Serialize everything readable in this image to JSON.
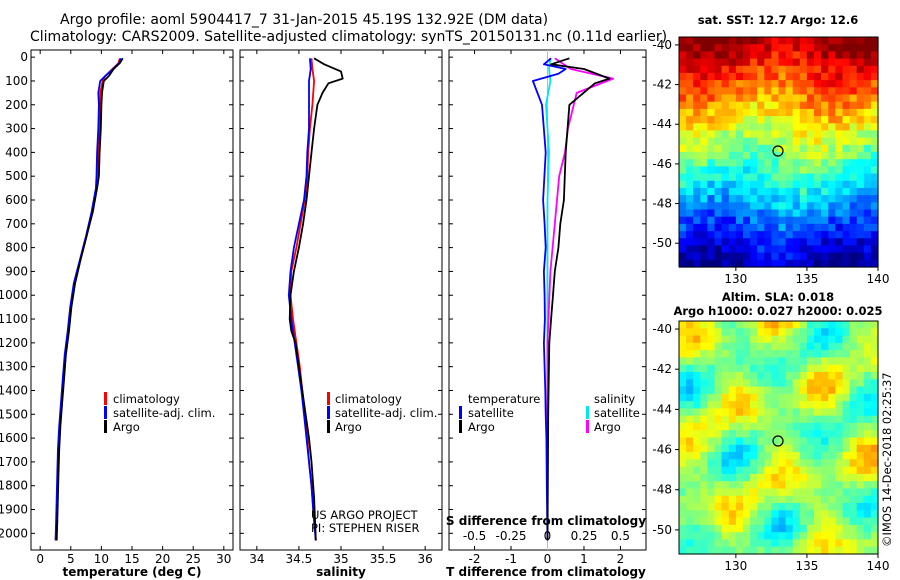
{
  "header": {
    "title_line1": "Argo profile: aoml 5904417_7 31-Jan-2015 45.19S 132.92E (DM data)",
    "title_line2": "Climatology: CARS2009. Satellite-adjusted climatology: synTS_20150131.nc (0.11d earlier)"
  },
  "depth_ticks": [
    "0",
    "100",
    "200",
    "300",
    "400",
    "500",
    "600",
    "700",
    "800",
    "900",
    "1000",
    "1100",
    "1200",
    "1300",
    "1400",
    "1500",
    "1600",
    "1700",
    "1800",
    "1900",
    "2000"
  ],
  "colors": {
    "climatology": "#ff0000",
    "satellite": "#0000ff",
    "argo": "#000000",
    "satellite_s": "#00e5ee",
    "argo_s": "#ff00ff"
  },
  "legend": {
    "climatology": "climatology",
    "satellite": "satellite-adj. clim.",
    "argo": "Argo"
  },
  "legend_diff": {
    "temperature": "temperature",
    "salinity": "salinity",
    "satellite": "satellite",
    "argo": "Argo"
  },
  "credit": {
    "line1": "US ARGO PROJECT",
    "line2": "PI: STEPHEN RISER"
  },
  "sst_title": "sat. SST: 12.7 Argo: 12.6",
  "sla_title1": "Altim. SLA: 0.018",
  "sla_title2": "Argo h1000: 0.027 h2000: 0.025",
  "stamp": "©IMOS 14-Dec-2018 02:25:37",
  "chart_data": [
    {
      "id": "temperature",
      "type": "line",
      "xlabel": "temperature (deg C)",
      "ylim": [
        2070,
        -30
      ],
      "xlim": [
        -1.5,
        31.5
      ],
      "xticks": [
        "0",
        "5",
        "10",
        "15",
        "20",
        "25",
        "30"
      ],
      "series": [
        {
          "name": "climatology",
          "x": [
            13.0,
            12.8,
            11.8,
            10.6,
            10.2,
            9.8,
            9.8,
            9.7,
            9.5,
            9.3,
            9.2,
            8.5,
            7.6,
            6.6,
            5.6,
            5.0,
            4.6,
            4.1,
            3.8,
            3.5,
            3.2,
            3.0,
            2.9,
            2.8,
            2.7,
            2.6
          ],
          "y": [
            5,
            25,
            50,
            80,
            100,
            150,
            200,
            300,
            400,
            500,
            550,
            650,
            750,
            850,
            950,
            1050,
            1150,
            1250,
            1350,
            1450,
            1550,
            1650,
            1750,
            1850,
            1950,
            2030
          ]
        },
        {
          "name": "satellite-adj. clim.",
          "x": [
            13.2,
            12.9,
            11.9,
            10.6,
            9.8,
            9.5,
            9.6,
            9.5,
            9.3,
            9.2,
            9.1,
            8.4,
            7.5,
            6.5,
            5.5,
            4.9,
            4.5,
            4.0,
            3.7,
            3.4,
            3.1,
            2.9,
            2.8,
            2.7,
            2.6,
            2.5
          ],
          "y": [
            5,
            25,
            50,
            80,
            100,
            150,
            200,
            300,
            400,
            500,
            550,
            650,
            750,
            850,
            950,
            1050,
            1150,
            1250,
            1350,
            1450,
            1550,
            1650,
            1750,
            1850,
            1950,
            2030
          ]
        },
        {
          "name": "Argo",
          "x": [
            13.5,
            13.0,
            12.0,
            11.2,
            10.4,
            10.1,
            10.0,
            9.9,
            9.7,
            9.6,
            9.3,
            8.6,
            7.6,
            6.6,
            5.7,
            5.1,
            4.7,
            4.2,
            3.9,
            3.6,
            3.3,
            3.1,
            3.0,
            2.9,
            2.8,
            2.7
          ],
          "y": [
            5,
            25,
            50,
            80,
            100,
            150,
            200,
            300,
            400,
            500,
            550,
            650,
            750,
            850,
            950,
            1050,
            1150,
            1250,
            1350,
            1450,
            1550,
            1650,
            1750,
            1850,
            1950,
            2030
          ]
        }
      ]
    },
    {
      "id": "salinity",
      "type": "line",
      "xlabel": "salinity",
      "ylim": [
        2070,
        -30
      ],
      "xlim": [
        33.8,
        36.2
      ],
      "xticks": [
        "34",
        "34.5",
        "35",
        "35.5",
        "36"
      ],
      "series": [
        {
          "name": "climatology",
          "x": [
            34.65,
            34.66,
            34.68,
            34.66,
            34.63,
            34.61,
            34.6,
            34.57,
            34.52,
            34.47,
            34.41,
            34.4,
            34.43,
            34.47,
            34.51,
            34.54,
            34.57,
            34.6,
            34.62,
            34.65,
            34.67,
            34.69,
            34.7
          ],
          "y": [
            5,
            50,
            100,
            200,
            300,
            400,
            500,
            600,
            700,
            800,
            900,
            1000,
            1100,
            1200,
            1300,
            1400,
            1500,
            1600,
            1700,
            1800,
            1900,
            1950,
            2030
          ]
        },
        {
          "name": "satellite-adj. clim.",
          "x": [
            34.63,
            34.64,
            34.62,
            34.62,
            34.62,
            34.6,
            34.59,
            34.56,
            34.5,
            34.44,
            34.4,
            34.38,
            34.41,
            34.45,
            34.49,
            34.53,
            34.56,
            34.59,
            34.62,
            34.65,
            34.67,
            34.68,
            34.7
          ],
          "y": [
            5,
            50,
            100,
            200,
            300,
            400,
            500,
            600,
            700,
            800,
            900,
            1000,
            1100,
            1200,
            1300,
            1400,
            1500,
            1600,
            1700,
            1800,
            1900,
            1950,
            2030
          ]
        },
        {
          "name": "Argo",
          "x": [
            34.68,
            34.8,
            35.0,
            35.02,
            34.85,
            34.78,
            34.72,
            34.68,
            34.65,
            34.62,
            34.59,
            34.55,
            34.5,
            34.44,
            34.4,
            34.39,
            34.41,
            34.46,
            34.5,
            34.54,
            34.58,
            34.62,
            34.65,
            34.68,
            34.7
          ],
          "y": [
            5,
            30,
            60,
            90,
            110,
            150,
            200,
            300,
            400,
            500,
            600,
            700,
            800,
            900,
            1000,
            1100,
            1150,
            1200,
            1300,
            1400,
            1500,
            1600,
            1700,
            1850,
            2030
          ]
        }
      ]
    },
    {
      "id": "difference",
      "type": "line",
      "xlabel": "T difference from climatology",
      "xlabel_top": "S difference from climatology",
      "ylim": [
        2070,
        -30
      ],
      "xlim": [
        -2.7,
        2.7
      ],
      "xticks": [
        "-2",
        "-1",
        "0",
        "1",
        "2"
      ],
      "xticks_s": [
        "-0.5",
        "-0.25",
        "0",
        "0.25",
        "0.5"
      ],
      "series": [
        {
          "name": "satellite",
          "variable": "temperature",
          "x": [
            0.1,
            -0.1,
            0.5,
            0.3,
            -0.4,
            -0.15,
            -0.05,
            -0.12,
            -0.08,
            -0.05,
            -0.1,
            -0.08,
            -0.07,
            -0.1,
            -0.08,
            -0.06,
            -0.05,
            -0.03,
            -0.02,
            0
          ],
          "y": [
            5,
            30,
            50,
            70,
            100,
            200,
            400,
            600,
            700,
            800,
            900,
            1000,
            1100,
            1200,
            1300,
            1400,
            1500,
            1600,
            1800,
            2030
          ]
        },
        {
          "name": "Argo",
          "variable": "temperature",
          "x": [
            0.6,
            0.1,
            1.0,
            1.7,
            1.3,
            0.6,
            0.5,
            0.45,
            0.35,
            0.3,
            0.2,
            0.15,
            0.1,
            0.05,
            0.02,
            0
          ],
          "y": [
            5,
            30,
            50,
            90,
            110,
            200,
            400,
            600,
            700,
            800,
            900,
            1000,
            1100,
            1200,
            1500,
            2030
          ]
        },
        {
          "name": "satellite",
          "variable": "salinity",
          "x": [
            0.02,
            0.01,
            0.02,
            -0.01,
            0.01,
            0.0,
            0.0,
            0.0,
            0.0,
            0
          ],
          "y": [
            5,
            50,
            100,
            200,
            400,
            600,
            800,
            1000,
            1400,
            2030
          ]
        },
        {
          "name": "Argo",
          "variable": "salinity",
          "x": [
            0.05,
            0.16,
            0.45,
            0.2,
            0.14,
            0.12,
            0.08,
            0.05,
            0.02,
            0.0,
            0
          ],
          "y": [
            5,
            50,
            90,
            150,
            300,
            400,
            500,
            700,
            900,
            1200,
            2030
          ]
        }
      ]
    },
    {
      "id": "sst-map",
      "type": "heatmap",
      "title": "sat. SST: 12.7 Argo: 12.6",
      "xlim": [
        126,
        140
      ],
      "ylim": [
        -51.2,
        -39.6
      ],
      "xticks": [
        "130",
        "135",
        "140"
      ],
      "yticks": [
        "-40",
        "-42",
        "-44",
        "-46",
        "-48",
        "-50"
      ],
      "marker": {
        "lon": 132.92,
        "lat": -45.19
      }
    },
    {
      "id": "sla-map",
      "type": "heatmap",
      "title": "Altim. SLA: 0.018",
      "subtitle": "Argo h1000: 0.027 h2000: 0.025",
      "xlim": [
        126,
        140
      ],
      "ylim": [
        -51.2,
        -39.6
      ],
      "xticks": [
        "130",
        "135",
        "140"
      ],
      "yticks": [
        "-40",
        "-42",
        "-44",
        "-46",
        "-48",
        "-50"
      ],
      "marker": {
        "lon": 132.92,
        "lat": -45.19
      }
    }
  ]
}
